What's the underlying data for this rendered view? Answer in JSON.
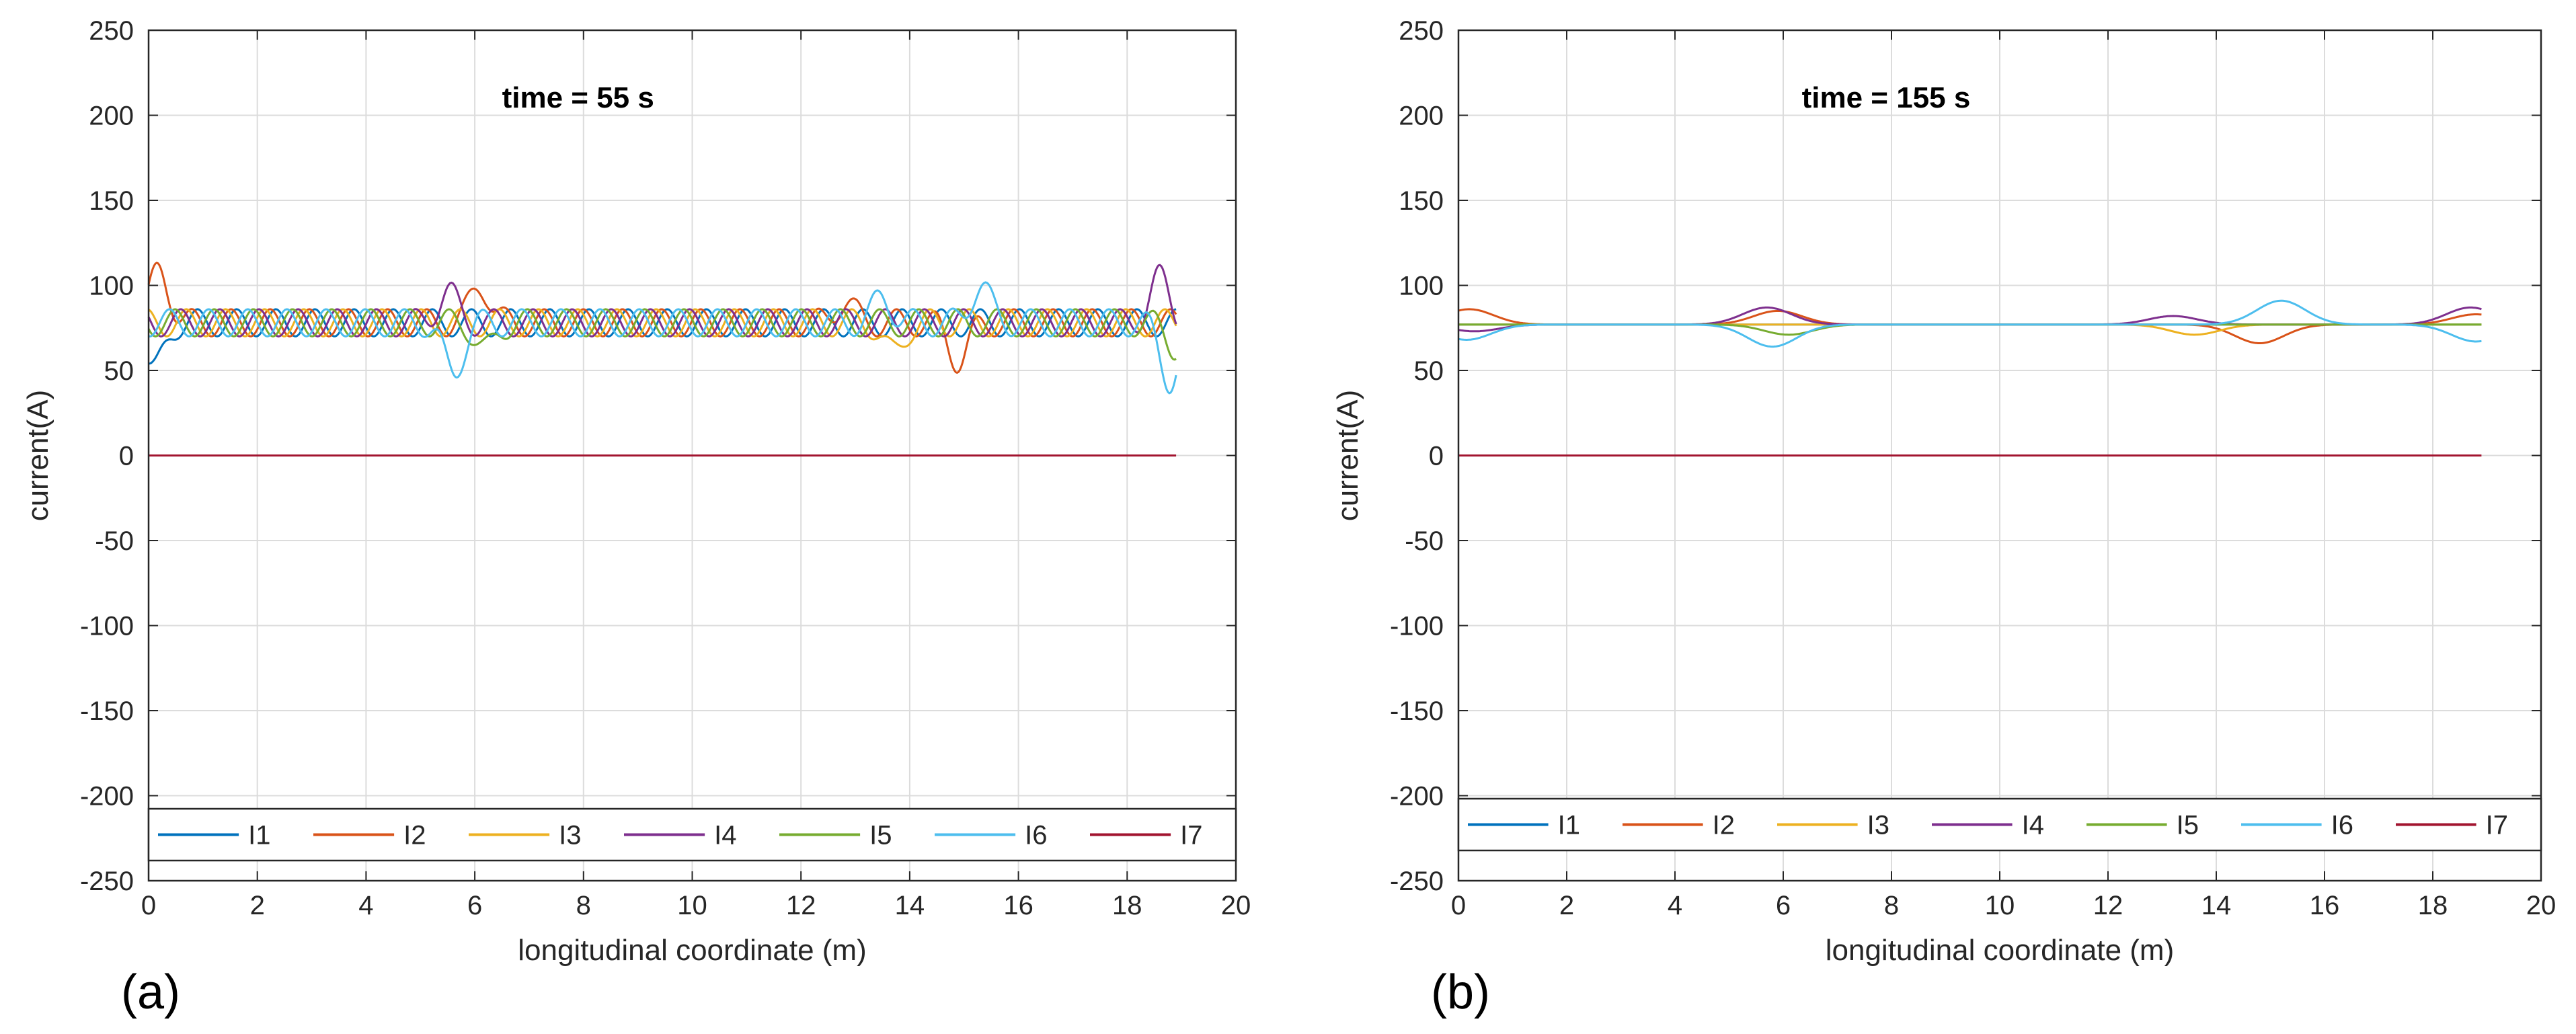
{
  "chart_data": [
    {
      "type": "line",
      "panel_label": "(a)",
      "title": "time = 55 s",
      "xlabel": "longitudinal coordinate (m)",
      "ylabel": "current(A)",
      "xlim": [
        0,
        20
      ],
      "ylim": [
        -250,
        250
      ],
      "xticks": [
        0,
        2,
        4,
        6,
        8,
        10,
        12,
        14,
        16,
        18,
        20
      ],
      "yticks": [
        250,
        200,
        150,
        100,
        50,
        0,
        -50,
        -100,
        -150,
        -200,
        -250
      ],
      "grid": true,
      "legend_placement": "bottom, horizontal inside axes",
      "pattern": "oscillating",
      "x_end": 18.9,
      "series": [
        {
          "name": "I1",
          "color": "#0072BD",
          "mean": 78,
          "amplitude": 8,
          "phase": 0.0
        },
        {
          "name": "I2",
          "color": "#D95319",
          "mean": 78,
          "amplitude": 8,
          "phase": 0.9
        },
        {
          "name": "I3",
          "color": "#EDB120",
          "mean": 78,
          "amplitude": 8,
          "phase": 1.8
        },
        {
          "name": "I4",
          "color": "#7E2F8E",
          "mean": 78,
          "amplitude": 8,
          "phase": 2.7
        },
        {
          "name": "I5",
          "color": "#77AC30",
          "mean": 78,
          "amplitude": 8,
          "phase": 3.6
        },
        {
          "name": "I6",
          "color": "#4DBEEE",
          "mean": 78,
          "amplitude": 8,
          "phase": 4.5
        },
        {
          "name": "I7",
          "color": "#A2142F",
          "mean": 0,
          "amplitude": 0,
          "phase": 0
        }
      ],
      "spikes": [
        {
          "series": "I1",
          "x": 0.1,
          "dy": -28
        },
        {
          "series": "I2",
          "x": 0.2,
          "dy": 30
        },
        {
          "series": "I4",
          "x": 5.5,
          "dy": 18
        },
        {
          "series": "I6",
          "x": 5.6,
          "dy": -30
        },
        {
          "series": "I2",
          "x": 6.1,
          "dy": 22
        },
        {
          "series": "I5",
          "x": 6.2,
          "dy": -16
        },
        {
          "series": "I2",
          "x": 12.8,
          "dy": 12
        },
        {
          "series": "I6",
          "x": 13.5,
          "dy": 14
        },
        {
          "series": "I3",
          "x": 13.7,
          "dy": -18
        },
        {
          "series": "I6",
          "x": 15.3,
          "dy": 22
        },
        {
          "series": "I2",
          "x": 14.9,
          "dy": -22
        },
        {
          "series": "I4",
          "x": 18.6,
          "dy": 26
        },
        {
          "series": "I6",
          "x": 18.8,
          "dy": -34
        },
        {
          "series": "I5",
          "x": 18.9,
          "dy": -14
        }
      ]
    },
    {
      "type": "line",
      "panel_label": "(b)",
      "title": "time = 155 s",
      "xlabel": "longitudinal coordinate (m)",
      "ylabel": "current(A)",
      "xlim": [
        0,
        20
      ],
      "ylim": [
        -250,
        250
      ],
      "xticks": [
        0,
        2,
        4,
        6,
        8,
        10,
        12,
        14,
        16,
        18,
        20
      ],
      "yticks": [
        250,
        200,
        150,
        100,
        50,
        0,
        -50,
        -100,
        -150,
        -200,
        -250
      ],
      "grid": true,
      "legend_placement": "bottom, horizontal inside axes",
      "pattern": "smooth",
      "x_end": 18.9,
      "series": [
        {
          "name": "I1",
          "color": "#0072BD",
          "mean": 77,
          "amplitude": 0,
          "phase": 0
        },
        {
          "name": "I2",
          "color": "#D95319",
          "mean": 77,
          "amplitude": 0,
          "phase": 0
        },
        {
          "name": "I3",
          "color": "#EDB120",
          "mean": 77,
          "amplitude": 0,
          "phase": 0
        },
        {
          "name": "I4",
          "color": "#7E2F8E",
          "mean": 77,
          "amplitude": 0,
          "phase": 0
        },
        {
          "name": "I5",
          "color": "#77AC30",
          "mean": 77,
          "amplitude": 0,
          "phase": 0
        },
        {
          "name": "I6",
          "color": "#4DBEEE",
          "mean": 77,
          "amplitude": 0,
          "phase": 0
        },
        {
          "name": "I7",
          "color": "#A2142F",
          "mean": 0,
          "amplitude": 0,
          "phase": 0
        }
      ],
      "spikes": [
        {
          "series": "I2",
          "x": 0.2,
          "dy": 9
        },
        {
          "series": "I6",
          "x": 0.15,
          "dy": -9
        },
        {
          "series": "I4",
          "x": 0.3,
          "dy": -4
        },
        {
          "series": "I4",
          "x": 5.7,
          "dy": 10
        },
        {
          "series": "I2",
          "x": 5.9,
          "dy": 8
        },
        {
          "series": "I6",
          "x": 5.8,
          "dy": -13
        },
        {
          "series": "I5",
          "x": 6.1,
          "dy": -6
        },
        {
          "series": "I4",
          "x": 13.2,
          "dy": 5
        },
        {
          "series": "I3",
          "x": 13.6,
          "dy": -6
        },
        {
          "series": "I2",
          "x": 14.8,
          "dy": -11
        },
        {
          "series": "I6",
          "x": 15.2,
          "dy": 14
        },
        {
          "series": "I4",
          "x": 18.7,
          "dy": 10
        },
        {
          "series": "I2",
          "x": 18.8,
          "dy": 6
        },
        {
          "series": "I6",
          "x": 18.8,
          "dy": -10
        }
      ]
    }
  ]
}
